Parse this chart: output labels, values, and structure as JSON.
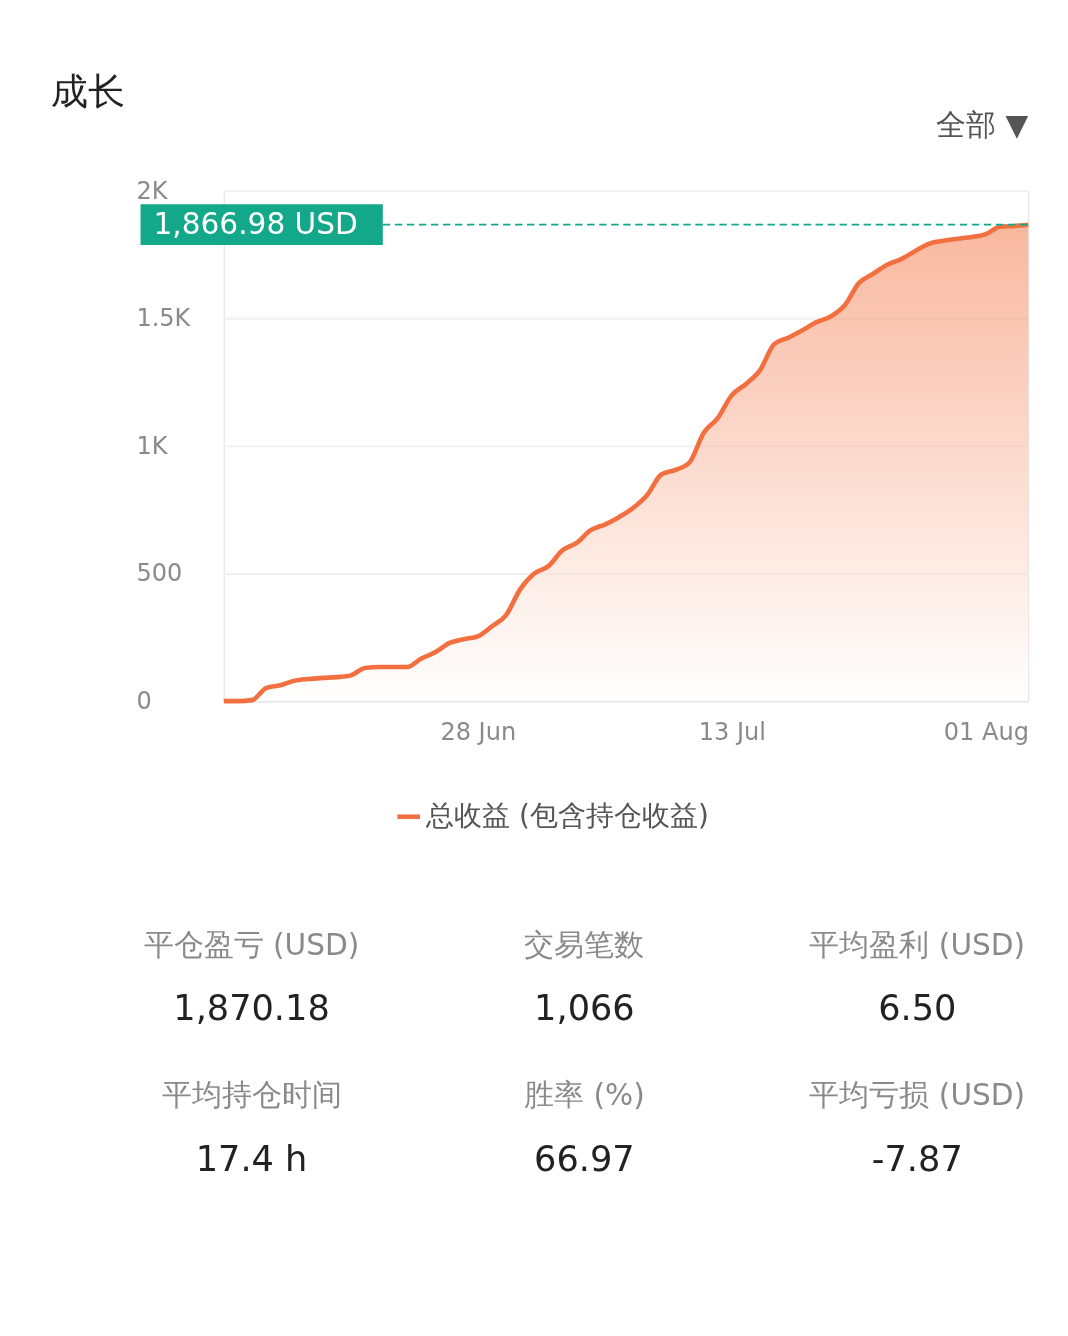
{
  "chart_data": [
    {
      "type": "area",
      "title": "成长",
      "annotations": [
        "全部 ▼"
      ],
      "categories": [
        null,
        null,
        null,
        null,
        null,
        null,
        null,
        null,
        null,
        null,
        null,
        null,
        null,
        null,
        null,
        null,
        null,
        null,
        "28 Jun",
        null,
        null,
        null,
        null,
        null,
        null,
        null,
        null,
        null,
        null,
        null,
        null,
        null,
        null,
        null,
        null,
        null,
        "13 Jul",
        null,
        null,
        null,
        null,
        null,
        null,
        null,
        null,
        null,
        null,
        null,
        null,
        null,
        null,
        null,
        null,
        null,
        "01 Aug",
        null,
        null,
        null
      ],
      "series": [
        {
          "name": "总收益 (包含持仓收益)",
          "color": "#f2703f",
          "values": [
            0,
            0,
            4,
            51,
            62,
            80,
            87,
            91,
            94,
            101,
            130,
            134,
            134,
            134,
            167,
            192,
            228,
            243,
            254,
            293,
            337,
            438,
            500,
            529,
            591,
            620,
            670,
            692,
            721,
            757,
            808,
            888,
            906,
            935,
            1051,
            1109,
            1199,
            1243,
            1297,
            1399,
            1424,
            1453,
            1485,
            1507,
            1551,
            1638,
            1674,
            1710,
            1732,
            1764,
            1793,
            1804,
            1812,
            1819,
            1830,
            1859,
            1862,
            1866.98
          ]
        }
      ],
      "ylim": [
        0,
        2000
      ],
      "yticks": [
        0,
        500,
        {
          "value": 1000,
          "label": "1K"
        },
        {
          "value": 1500,
          "label": "1.5K"
        },
        {
          "value": 2000,
          "label": "2K"
        }
      ],
      "grid": "y",
      "legend": "bottom",
      "ref_lines": [
        {
          "axis": "y",
          "value": 1866.98,
          "label": "1,866.98 USD",
          "color": "#13a889",
          "line_style": "dashed"
        }
      ]
    },
    {
      "type": "other",
      "annotations": [
        "平仓盈亏 (USD)",
        "1,870.18",
        "交易笔数",
        "1,066",
        "平均盈利 (USD)",
        "6.50",
        "平均持仓时间",
        "17.4 h",
        "胜率 (%)",
        "66.97",
        "平均亏损 (USD)",
        "-7.87"
      ]
    }
  ]
}
